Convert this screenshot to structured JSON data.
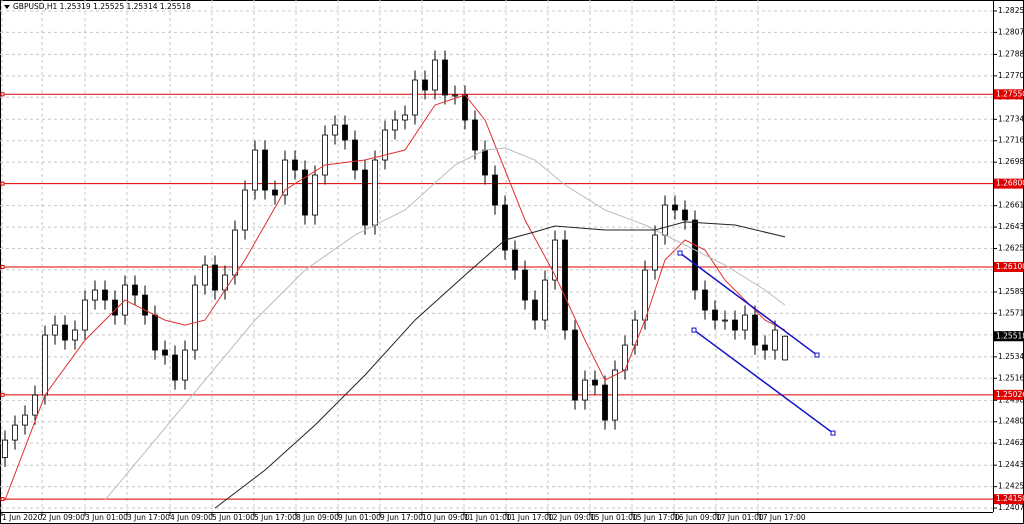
{
  "chart_data": {
    "type": "candlestick",
    "title": "GBPUSD,H1  1.25319 1.25525 1.25314 1.25518",
    "xlim": [
      -0.5,
      98.8
    ],
    "ylim": [
      1.24042,
      1.28342
    ],
    "grid": true,
    "up_color": "#ffffff",
    "down_color": "#000000",
    "outline_color": "#000000",
    "open": [
      1.245,
      1.24646,
      1.24772,
      1.24856,
      1.25024,
      1.25528,
      1.25612,
      1.25486,
      1.2557,
      1.25822,
      1.25906,
      1.25822,
      1.25696,
      1.25948,
      1.25864,
      1.25696,
      1.25402,
      1.2536,
      1.2515,
      1.25402,
      1.25948,
      1.26116,
      1.25906,
      1.26032,
      1.2641,
      1.26746,
      1.27082,
      1.26746,
      1.26704,
      1.26998,
      1.26914,
      1.26536,
      1.26872,
      1.27208,
      1.27292,
      1.27166,
      1.26914,
      1.26452,
      1.26998,
      1.2725,
      1.27334,
      1.27376,
      1.2767,
      1.27586,
      1.27838,
      1.27544,
      1.27544,
      1.27334,
      1.27082,
      1.26872,
      1.2662,
      1.26242,
      1.26074,
      1.25822,
      1.25654,
      1.2599,
      1.26326,
      1.2557,
      1.24982,
      1.2515,
      1.25108,
      1.24814,
      1.25234,
      1.25444,
      1.25654,
      1.26074,
      1.26368,
      1.2662,
      1.26578,
      1.26494,
      1.25906,
      1.25738,
      1.25654,
      1.25654,
      1.2557,
      1.25696,
      1.25444,
      1.25402,
      1.25319
    ],
    "high": [
      1.24726,
      1.24852,
      1.24936,
      1.25104,
      1.25608,
      1.25692,
      1.25692,
      1.2565,
      1.25902,
      1.25986,
      1.25986,
      1.25902,
      1.26028,
      1.26028,
      1.25944,
      1.25776,
      1.25482,
      1.2544,
      1.25482,
      1.26028,
      1.26196,
      1.26196,
      1.26112,
      1.2649,
      1.26826,
      1.27162,
      1.27162,
      1.26826,
      1.27078,
      1.27078,
      1.26994,
      1.26952,
      1.27288,
      1.27372,
      1.27372,
      1.27246,
      1.26994,
      1.27078,
      1.2733,
      1.27414,
      1.27456,
      1.2775,
      1.2775,
      1.27918,
      1.27918,
      1.27624,
      1.27624,
      1.27414,
      1.27162,
      1.26952,
      1.267,
      1.26322,
      1.26154,
      1.25902,
      1.2607,
      1.26406,
      1.26406,
      1.2565,
      1.2523,
      1.2523,
      1.25188,
      1.25314,
      1.25524,
      1.25734,
      1.26154,
      1.26448,
      1.267,
      1.267,
      1.26658,
      1.26574,
      1.25986,
      1.25818,
      1.25734,
      1.25734,
      1.25776,
      1.25776,
      1.25524,
      1.2565,
      1.25525
    ],
    "low": [
      1.2442,
      1.24566,
      1.24692,
      1.24776,
      1.24944,
      1.25448,
      1.25406,
      1.25406,
      1.2549,
      1.25742,
      1.25742,
      1.25616,
      1.25616,
      1.25784,
      1.25616,
      1.25322,
      1.2528,
      1.2507,
      1.2507,
      1.25322,
      1.25868,
      1.25826,
      1.25826,
      1.25952,
      1.2633,
      1.26666,
      1.26666,
      1.26624,
      1.26624,
      1.26834,
      1.26456,
      1.26456,
      1.26792,
      1.27128,
      1.27086,
      1.26834,
      1.26372,
      1.26372,
      1.26918,
      1.2717,
      1.27254,
      1.27296,
      1.27506,
      1.27506,
      1.27464,
      1.27464,
      1.27254,
      1.27002,
      1.26792,
      1.2654,
      1.26162,
      1.25994,
      1.25742,
      1.25574,
      1.25574,
      1.2591,
      1.2549,
      1.24902,
      1.24902,
      1.25028,
      1.24734,
      1.24734,
      1.25154,
      1.25364,
      1.25574,
      1.25994,
      1.26288,
      1.26498,
      1.26414,
      1.25826,
      1.25658,
      1.25574,
      1.25574,
      1.2549,
      1.2549,
      1.25364,
      1.25322,
      1.25322,
      1.25314
    ],
    "close": [
      1.24646,
      1.24772,
      1.24856,
      1.25024,
      1.25528,
      1.25612,
      1.25486,
      1.2557,
      1.25822,
      1.25906,
      1.25822,
      1.25696,
      1.25948,
      1.25864,
      1.25696,
      1.25402,
      1.2536,
      1.2515,
      1.25402,
      1.25948,
      1.26116,
      1.25906,
      1.26032,
      1.2641,
      1.26746,
      1.27082,
      1.26746,
      1.26704,
      1.26998,
      1.26914,
      1.26536,
      1.26872,
      1.27208,
      1.27292,
      1.27166,
      1.26914,
      1.26452,
      1.26998,
      1.2725,
      1.27334,
      1.27376,
      1.2767,
      1.27586,
      1.27838,
      1.27544,
      1.27544,
      1.27334,
      1.27082,
      1.26872,
      1.2662,
      1.26242,
      1.26074,
      1.25822,
      1.25654,
      1.2599,
      1.26326,
      1.2557,
      1.24982,
      1.2515,
      1.25108,
      1.24814,
      1.25234,
      1.25444,
      1.25654,
      1.26074,
      1.26368,
      1.2662,
      1.26578,
      1.26494,
      1.25906,
      1.25738,
      1.25654,
      1.25654,
      1.2557,
      1.25696,
      1.25444,
      1.25402,
      1.2557,
      1.25518
    ],
    "ma": [
      {
        "color": "#e03030",
        "x": [
          0,
          4,
          8,
          12,
          16,
          18,
          20,
          24,
          28,
          32,
          36,
          40,
          43,
          46,
          48,
          52,
          55,
          58,
          60,
          62,
          64,
          66,
          68,
          70,
          72,
          74,
          76,
          78
        ],
        "values": [
          1.24142,
          1.25024,
          1.25486,
          1.25822,
          1.25654,
          1.25612,
          1.25654,
          1.26158,
          1.26746,
          1.26956,
          1.26998,
          1.27082,
          1.2746,
          1.27544,
          1.27334,
          1.26494,
          1.26032,
          1.25486,
          1.2515,
          1.25234,
          1.25654,
          1.26158,
          1.26326,
          1.26242,
          1.2599,
          1.25822,
          1.25654,
          1.2557
        ]
      },
      {
        "color": "#bbbbbb",
        "x": [
          10,
          15,
          20,
          25,
          30,
          35,
          40,
          45,
          48,
          50,
          53,
          56,
          60,
          64,
          68,
          72,
          76,
          78
        ],
        "values": [
          1.24142,
          1.24646,
          1.2515,
          1.25654,
          1.26074,
          1.26368,
          1.26578,
          1.26956,
          1.27082,
          1.27099,
          1.26998,
          1.26788,
          1.26578,
          1.26452,
          1.26284,
          1.26116,
          1.25906,
          1.2578
        ]
      },
      {
        "color": "#222222",
        "x": [
          21,
          26,
          31,
          36,
          41,
          46,
          50,
          53,
          55,
          60,
          65,
          68,
          73,
          78
        ],
        "values": [
          1.24075,
          1.24394,
          1.24772,
          1.25192,
          1.25654,
          1.26032,
          1.26326,
          1.26394,
          1.26444,
          1.2641,
          1.2641,
          1.26478,
          1.26452,
          1.26352
        ]
      }
    ],
    "level_color": "#e00000",
    "levels": [
      {
        "value": 1.2755,
        "label": "1.27550"
      },
      {
        "value": 1.268,
        "label": "1.26800"
      },
      {
        "value": 1.261,
        "label": "1.26100"
      },
      {
        "value": 1.25026,
        "label": "1.25026"
      },
      {
        "value": 1.2415,
        "label": "1.24150"
      }
    ],
    "channel_color": "#1010c8",
    "channel": [
      {
        "x": [
          67.5,
          81.2
        ],
        "y": [
          1.26217,
          1.2536
        ]
      },
      {
        "x": [
          68.9,
          82.8
        ],
        "y": [
          1.2557,
          1.24705
        ]
      }
    ],
    "last_price": {
      "value": 1.25518,
      "label": "1.25518"
    },
    "xticks": [
      {
        "value": -0.3,
        "label": "1 Jun 2020"
      },
      {
        "value": 3.7,
        "label": "2 Jun 09:00"
      },
      {
        "value": 8,
        "label": "3 Jun 01:00"
      },
      {
        "value": 12.2,
        "label": "3 Jun 17:00"
      },
      {
        "value": 16.5,
        "label": "4 Jun 09:00"
      },
      {
        "value": 20.7,
        "label": "5 Jun 01:00"
      },
      {
        "value": 24.9,
        "label": "5 Jun 17:00"
      },
      {
        "value": 29.1,
        "label": "8 Jun 09:00"
      },
      {
        "value": 33.3,
        "label": "9 Jun 01:00"
      },
      {
        "value": 37.5,
        "label": "9 Jun 17:00"
      },
      {
        "value": 41.7,
        "label": "10 Jun 09:00"
      },
      {
        "value": 45.9,
        "label": "11 Jun 01:00"
      },
      {
        "value": 50.1,
        "label": "11 Jun 17:00"
      },
      {
        "value": 54.3,
        "label": "12 Jun 09:00"
      },
      {
        "value": 58.5,
        "label": "15 Jun 01:00"
      },
      {
        "value": 62.7,
        "label": "15 Jun 17:00"
      },
      {
        "value": 66.9,
        "label": "16 Jun 09:00"
      },
      {
        "value": 71.1,
        "label": "17 Jun 01:00"
      },
      {
        "value": 75.3,
        "label": "17 Jun 17:00"
      }
    ],
    "yticks": [
      {
        "value": 1.2825,
        "label": "1.28250"
      },
      {
        "value": 1.2807,
        "label": "1.28070"
      },
      {
        "value": 1.27885,
        "label": "1.27885"
      },
      {
        "value": 1.27705,
        "label": "1.27705"
      },
      {
        "value": 1.27525,
        "label": "1.27525"
      },
      {
        "value": 1.2734,
        "label": "1.27340"
      },
      {
        "value": 1.2716,
        "label": "1.27160"
      },
      {
        "value": 1.2698,
        "label": "1.26980"
      },
      {
        "value": 1.268,
        "label": "1.26800"
      },
      {
        "value": 1.26615,
        "label": "1.26615"
      },
      {
        "value": 1.26435,
        "label": "1.26435"
      },
      {
        "value": 1.26255,
        "label": "1.26255"
      },
      {
        "value": 1.26075,
        "label": "1.26075"
      },
      {
        "value": 1.2589,
        "label": "1.25890"
      },
      {
        "value": 1.2571,
        "label": "1.25710"
      },
      {
        "value": 1.2553,
        "label": "1.25530"
      },
      {
        "value": 1.25345,
        "label": "1.25345"
      },
      {
        "value": 1.25165,
        "label": "1.25165"
      },
      {
        "value": 1.2498,
        "label": "1.24980"
      },
      {
        "value": 1.248,
        "label": "1.24800"
      },
      {
        "value": 1.2462,
        "label": "1.24620"
      },
      {
        "value": 1.24435,
        "label": "1.24435"
      },
      {
        "value": 1.24255,
        "label": "1.24255"
      },
      {
        "value": 1.24075,
        "label": "1.24075"
      }
    ]
  }
}
